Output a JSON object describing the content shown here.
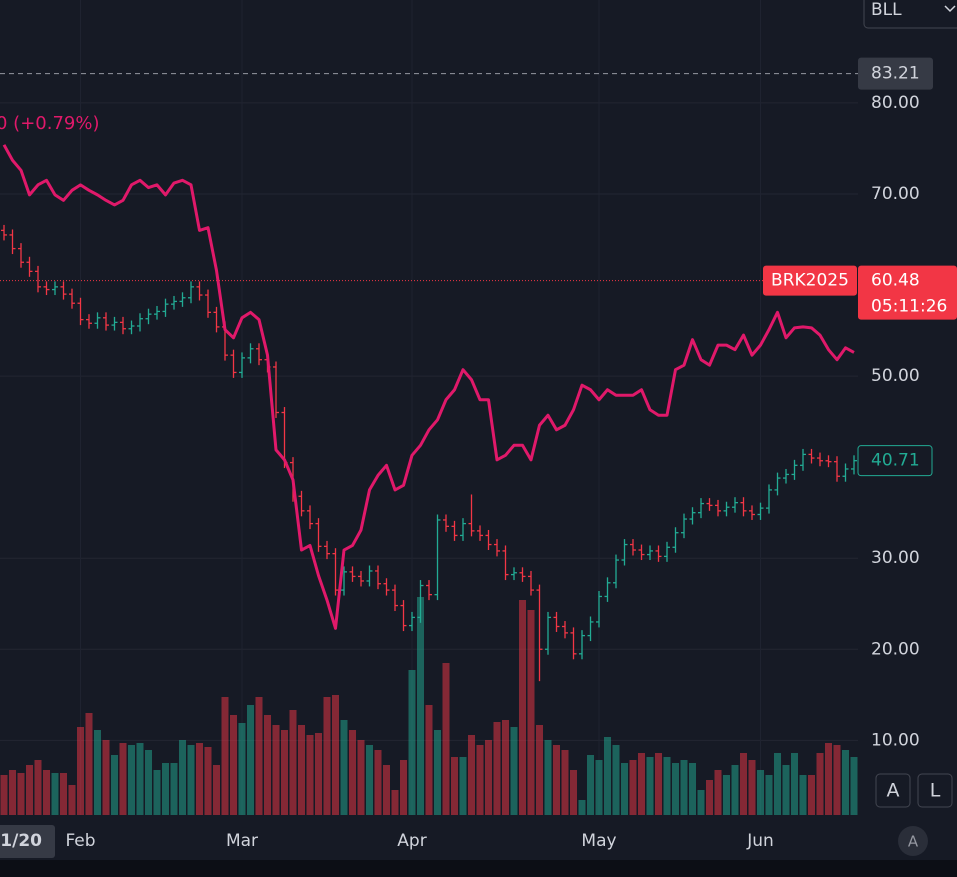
{
  "symbol": "BLL",
  "chart_data": {
    "type": "ohlc",
    "compare": {
      "label": "0 (+0.79%)",
      "color": "#e0196a",
      "values": [
        75.4,
        73.7,
        72.6,
        69.9,
        71.0,
        71.5,
        69.9,
        69.3,
        70.4,
        71.0,
        70.4,
        69.9,
        69.3,
        68.8,
        69.3,
        71.0,
        71.5,
        70.7,
        71.0,
        69.9,
        71.2,
        71.5,
        71.0,
        66.0,
        66.3,
        61.6,
        55.1,
        54.2,
        56.4,
        57.0,
        56.2,
        52.3,
        41.9,
        40.8,
        38.6,
        30.9,
        31.4,
        28.1,
        25.4,
        22.3,
        30.9,
        31.4,
        33.1,
        37.5,
        39.1,
        40.2,
        37.5,
        38.0,
        41.3,
        42.4,
        44.1,
        45.2,
        47.4,
        48.5,
        50.7,
        49.6,
        47.4,
        47.4,
        40.8,
        41.3,
        42.4,
        42.4,
        40.8,
        44.6,
        45.7,
        44.1,
        44.6,
        46.3,
        49.0,
        48.5,
        47.4,
        48.5,
        47.9,
        47.9,
        47.9,
        48.5,
        46.3,
        45.7,
        45.7,
        50.7,
        51.2,
        54.0,
        51.8,
        51.2,
        53.4,
        53.4,
        52.9,
        54.5,
        52.3,
        53.4,
        55.1,
        57.0,
        54.2,
        55.3,
        55.4,
        55.3,
        54.5,
        52.9,
        51.8,
        53.1,
        52.6
      ]
    },
    "categories": [
      null,
      null,
      null,
      null,
      null,
      null,
      null,
      null,
      null,
      null,
      null,
      null,
      null,
      null,
      null,
      null,
      null,
      null,
      null,
      null,
      null,
      null,
      null,
      null,
      null,
      null,
      null,
      null,
      null,
      null,
      null,
      null,
      null,
      null,
      null,
      null,
      null,
      null,
      null,
      null,
      null,
      null,
      null,
      null,
      null,
      null,
      null,
      null,
      null,
      null,
      null,
      null,
      null,
      null,
      null,
      null,
      null,
      null,
      null,
      null,
      null,
      null,
      null,
      null,
      null,
      null,
      null,
      null,
      null,
      null,
      null,
      null,
      null,
      null,
      null,
      null,
      null,
      null,
      null,
      null,
      null,
      null,
      null,
      null,
      null,
      null,
      null,
      null,
      null,
      null,
      null,
      null,
      null,
      null,
      null,
      null,
      null,
      null,
      null,
      null,
      null
    ],
    "open": [
      66.0,
      65.5,
      64.0,
      62.5,
      61.5,
      59.8,
      59.5,
      59.8,
      59.0,
      58.0,
      56.2,
      55.8,
      56.4,
      55.6,
      55.9,
      55.2,
      55.5,
      56.3,
      56.8,
      57.1,
      57.9,
      58.2,
      58.6,
      59.8,
      58.9,
      57.0,
      55.4,
      52.3,
      50.4,
      52.0,
      53.0,
      51.8,
      51.0,
      46.0,
      40.5,
      36.8,
      35.2,
      33.8,
      31.3,
      30.5,
      26.5,
      28.5,
      28.0,
      27.5,
      28.6,
      27.2,
      26.5,
      24.8,
      22.6,
      23.5,
      27.0,
      26.0,
      34.2,
      33.5,
      32.5,
      33.8,
      33.0,
      32.5,
      31.5,
      30.8,
      28.2,
      28.4,
      28.0,
      26.5,
      20.0,
      23.5,
      22.5,
      21.8,
      19.5,
      21.5,
      23.0,
      25.8,
      27.3,
      29.8,
      31.5,
      30.9,
      30.4,
      30.8,
      30.2,
      31.2,
      32.8,
      34.3,
      35.0,
      36.0,
      35.8,
      35.2,
      35.6,
      36.1,
      35.2,
      34.8,
      35.5,
      37.5,
      38.8,
      39.2,
      40.2,
      41.4,
      41.0,
      40.7,
      40.6,
      39.0,
      39.8
    ],
    "high": [
      66.6,
      66.1,
      64.6,
      63.1,
      62.1,
      60.4,
      60.4,
      60.4,
      59.6,
      58.6,
      56.8,
      57.0,
      57.0,
      56.5,
      56.5,
      56.1,
      56.9,
      57.4,
      57.7,
      58.5,
      58.8,
      59.2,
      60.4,
      60.4,
      59.5,
      57.6,
      56.0,
      52.9,
      52.6,
      53.6,
      53.6,
      52.4,
      51.6,
      46.6,
      41.1,
      37.4,
      35.8,
      34.4,
      31.9,
      31.1,
      29.1,
      29.1,
      28.6,
      29.2,
      29.2,
      27.8,
      27.1,
      25.4,
      24.1,
      27.6,
      27.6,
      34.8,
      34.8,
      34.1,
      34.4,
      37.0,
      33.6,
      33.1,
      32.1,
      31.4,
      29.0,
      29.0,
      28.6,
      27.1,
      24.1,
      24.1,
      23.1,
      22.4,
      22.1,
      23.6,
      26.4,
      27.9,
      30.4,
      32.1,
      32.1,
      31.5,
      31.4,
      31.4,
      31.8,
      33.4,
      34.9,
      35.6,
      36.6,
      36.6,
      36.4,
      36.2,
      36.7,
      36.7,
      35.8,
      36.1,
      38.1,
      39.4,
      39.8,
      40.8,
      42.0,
      42.0,
      41.6,
      41.3,
      41.2,
      40.4,
      41.3
    ],
    "low": [
      64.9,
      63.4,
      61.9,
      60.9,
      59.2,
      58.9,
      58.9,
      58.4,
      57.4,
      55.6,
      55.2,
      55.2,
      55.0,
      55.0,
      54.6,
      54.6,
      54.9,
      55.7,
      56.2,
      56.5,
      57.3,
      57.6,
      58.0,
      58.3,
      56.4,
      54.8,
      51.7,
      49.8,
      49.8,
      51.4,
      51.2,
      50.4,
      45.4,
      39.9,
      36.2,
      34.6,
      33.2,
      30.7,
      29.9,
      25.9,
      25.9,
      27.4,
      26.9,
      26.9,
      26.6,
      25.9,
      24.2,
      22.0,
      22.0,
      22.9,
      25.4,
      25.4,
      32.9,
      31.9,
      31.9,
      32.4,
      31.9,
      30.9,
      30.2,
      27.6,
      27.6,
      27.4,
      25.9,
      16.5,
      19.4,
      21.9,
      21.2,
      18.9,
      18.9,
      20.9,
      22.4,
      25.2,
      26.7,
      29.2,
      30.3,
      29.8,
      29.8,
      29.6,
      29.6,
      30.6,
      32.2,
      33.7,
      34.4,
      35.2,
      34.6,
      34.6,
      35.0,
      34.6,
      34.2,
      34.2,
      34.9,
      36.9,
      38.2,
      38.6,
      39.6,
      40.4,
      40.1,
      40.0,
      38.4,
      38.4,
      39.2
    ],
    "close": [
      65.5,
      64.0,
      62.5,
      61.5,
      59.8,
      59.5,
      59.8,
      59.0,
      58.0,
      56.2,
      55.8,
      56.4,
      55.6,
      55.9,
      55.2,
      55.5,
      56.3,
      56.8,
      57.1,
      57.9,
      58.2,
      58.6,
      59.8,
      58.9,
      57.0,
      55.4,
      52.3,
      50.4,
      52.0,
      53.0,
      51.8,
      51.0,
      46.0,
      40.5,
      36.8,
      35.2,
      33.8,
      31.3,
      30.5,
      26.5,
      28.5,
      28.0,
      27.5,
      28.6,
      27.2,
      26.5,
      24.8,
      22.6,
      23.5,
      27.0,
      26.0,
      34.2,
      33.5,
      32.5,
      33.8,
      33.0,
      32.5,
      31.5,
      30.8,
      28.2,
      28.4,
      28.0,
      26.5,
      20.0,
      23.5,
      22.5,
      21.8,
      19.5,
      21.5,
      23.0,
      25.8,
      27.3,
      29.8,
      31.5,
      30.9,
      30.4,
      30.8,
      30.2,
      31.2,
      32.8,
      34.3,
      35.0,
      36.0,
      35.8,
      35.2,
      35.6,
      36.1,
      35.2,
      34.8,
      35.5,
      37.5,
      38.8,
      39.2,
      40.2,
      41.4,
      41.0,
      40.7,
      40.6,
      39.0,
      39.8,
      40.71
    ],
    "volume": [
      40,
      45,
      42,
      50,
      55,
      45,
      42,
      42,
      30,
      88,
      102,
      85,
      75,
      60,
      72,
      70,
      72,
      65,
      45,
      52,
      52,
      75,
      70,
      72,
      68,
      50,
      118,
      100,
      92,
      110,
      118,
      100,
      90,
      85,
      105,
      90,
      80,
      82,
      118,
      120,
      95,
      85,
      75,
      70,
      65,
      50,
      25,
      55,
      145,
      218,
      110,
      85,
      152,
      58,
      58,
      80,
      70,
      75,
      93,
      95,
      88,
      215,
      205,
      90,
      75,
      70,
      65,
      45,
      15,
      60,
      55,
      78,
      70,
      52,
      55,
      62,
      58,
      62,
      58,
      52,
      55,
      52,
      25,
      35,
      45,
      40,
      50,
      62,
      55,
      45,
      40,
      62,
      50,
      62,
      40,
      40,
      62,
      72,
      70,
      65,
      58
    ],
    "vlim": [
      0,
      240
    ],
    "up_color": "#22ab94",
    "down_color": "#f23645",
    "ylim": [
      1.8,
      91.3
    ],
    "yticks": [
      {
        "value": 80,
        "label": "80.00"
      },
      {
        "value": 70,
        "label": "70.00"
      },
      {
        "value": 50,
        "label": "50.00"
      },
      {
        "value": 30,
        "label": "30.00"
      },
      {
        "value": 20,
        "label": "20.00"
      },
      {
        "value": 10,
        "label": "10.00"
      }
    ],
    "xticks": [
      {
        "value": 9,
        "label": "Feb"
      },
      {
        "value": 28,
        "label": "Mar"
      },
      {
        "value": 48,
        "label": "Apr"
      },
      {
        "value": 70,
        "label": "May"
      },
      {
        "value": 89,
        "label": "Jun"
      }
    ],
    "grid": true,
    "crosshair_label": "1/20",
    "high_line": {
      "value": 83.21,
      "color": "#9598a1"
    },
    "last_line": {
      "name": "BRK2025",
      "value": 60.48,
      "countdown": "05:11:26",
      "color": "#f23645"
    },
    "compare_last": {
      "value": 40.71,
      "color": "#22ab94"
    },
    "buttons": [
      "A",
      "L"
    ],
    "scale_button": "A"
  }
}
